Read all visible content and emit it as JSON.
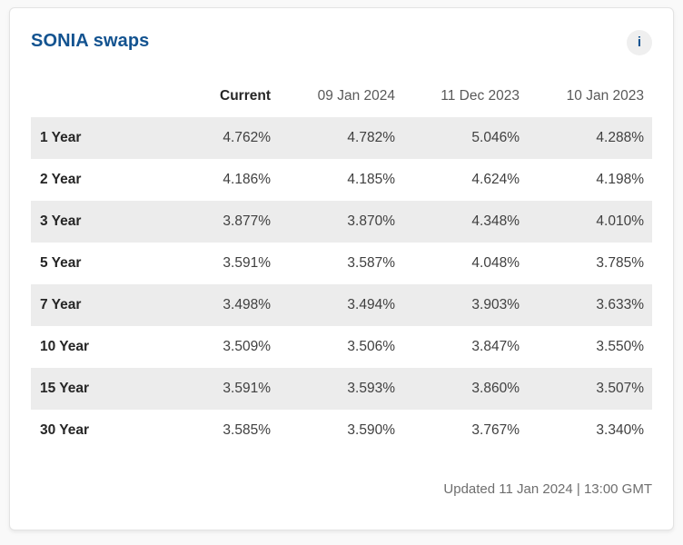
{
  "card": {
    "title": "SONIA swaps",
    "info_button": {
      "label": "i"
    },
    "table": {
      "headers": {
        "col0": "",
        "col1": "Current",
        "col2": "09 Jan 2024",
        "col3": "11 Dec 2023",
        "col4": "10 Jan 2023"
      },
      "rows": [
        {
          "label": "1 Year",
          "values": [
            "4.762%",
            "4.782%",
            "5.046%",
            "4.288%"
          ]
        },
        {
          "label": "2 Year",
          "values": [
            "4.186%",
            "4.185%",
            "4.624%",
            "4.198%"
          ]
        },
        {
          "label": "3 Year",
          "values": [
            "3.877%",
            "3.870%",
            "4.348%",
            "4.010%"
          ]
        },
        {
          "label": "5 Year",
          "values": [
            "3.591%",
            "3.587%",
            "4.048%",
            "3.785%"
          ]
        },
        {
          "label": "7 Year",
          "values": [
            "3.498%",
            "3.494%",
            "3.903%",
            "3.633%"
          ]
        },
        {
          "label": "10 Year",
          "values": [
            "3.509%",
            "3.506%",
            "3.847%",
            "3.550%"
          ]
        },
        {
          "label": "15 Year",
          "values": [
            "3.591%",
            "3.593%",
            "3.860%",
            "3.507%"
          ]
        },
        {
          "label": "30 Year",
          "values": [
            "3.585%",
            "3.590%",
            "3.767%",
            "3.340%"
          ]
        }
      ]
    },
    "footer": {
      "updated": "Updated 11 Jan 2024 | 13:00 GMT"
    }
  },
  "colors": {
    "title_blue": "#135390",
    "stripe_gray": "#ececec",
    "header_text": "#595959",
    "value_text": "#404040",
    "footer_text": "#6e6e6e",
    "card_border": "#e3e3e3",
    "page_background": "#f9f9f9"
  }
}
